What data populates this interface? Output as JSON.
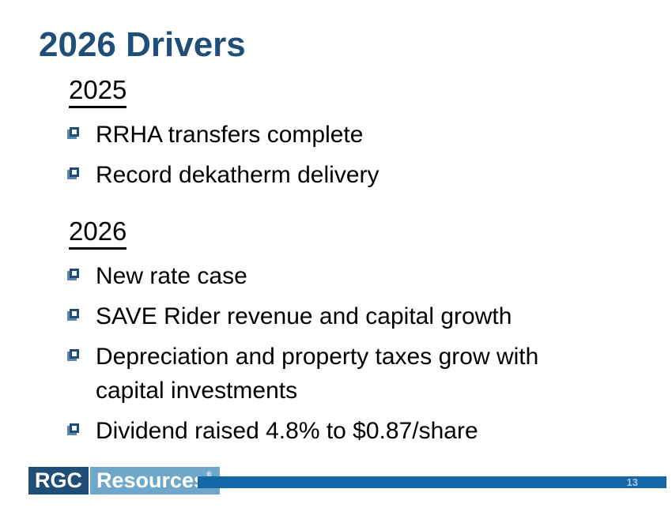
{
  "slide": {
    "title": "2026 Drivers",
    "page_number": "13",
    "sections": [
      {
        "heading": "2025",
        "bullets": [
          "RRHA transfers complete",
          "Record dekatherm delivery"
        ]
      },
      {
        "heading": "2026",
        "bullets": [
          "New rate case",
          "SAVE Rider revenue and capital growth",
          "Depreciation and property taxes grow with\ncapital investments",
          "Dividend raised 4.8% to $0.87/share"
        ]
      }
    ],
    "logo": {
      "primary": "RGC",
      "secondary": "Resources",
      "trademark": "®"
    },
    "colors": {
      "accent_navy": "#1F4E79",
      "bar_blue": "#1567A7",
      "logo_light_blue": "#6FA7CB",
      "page_number_text": "#A9C9E8",
      "bullet_shadow": "#5C87AD"
    }
  }
}
